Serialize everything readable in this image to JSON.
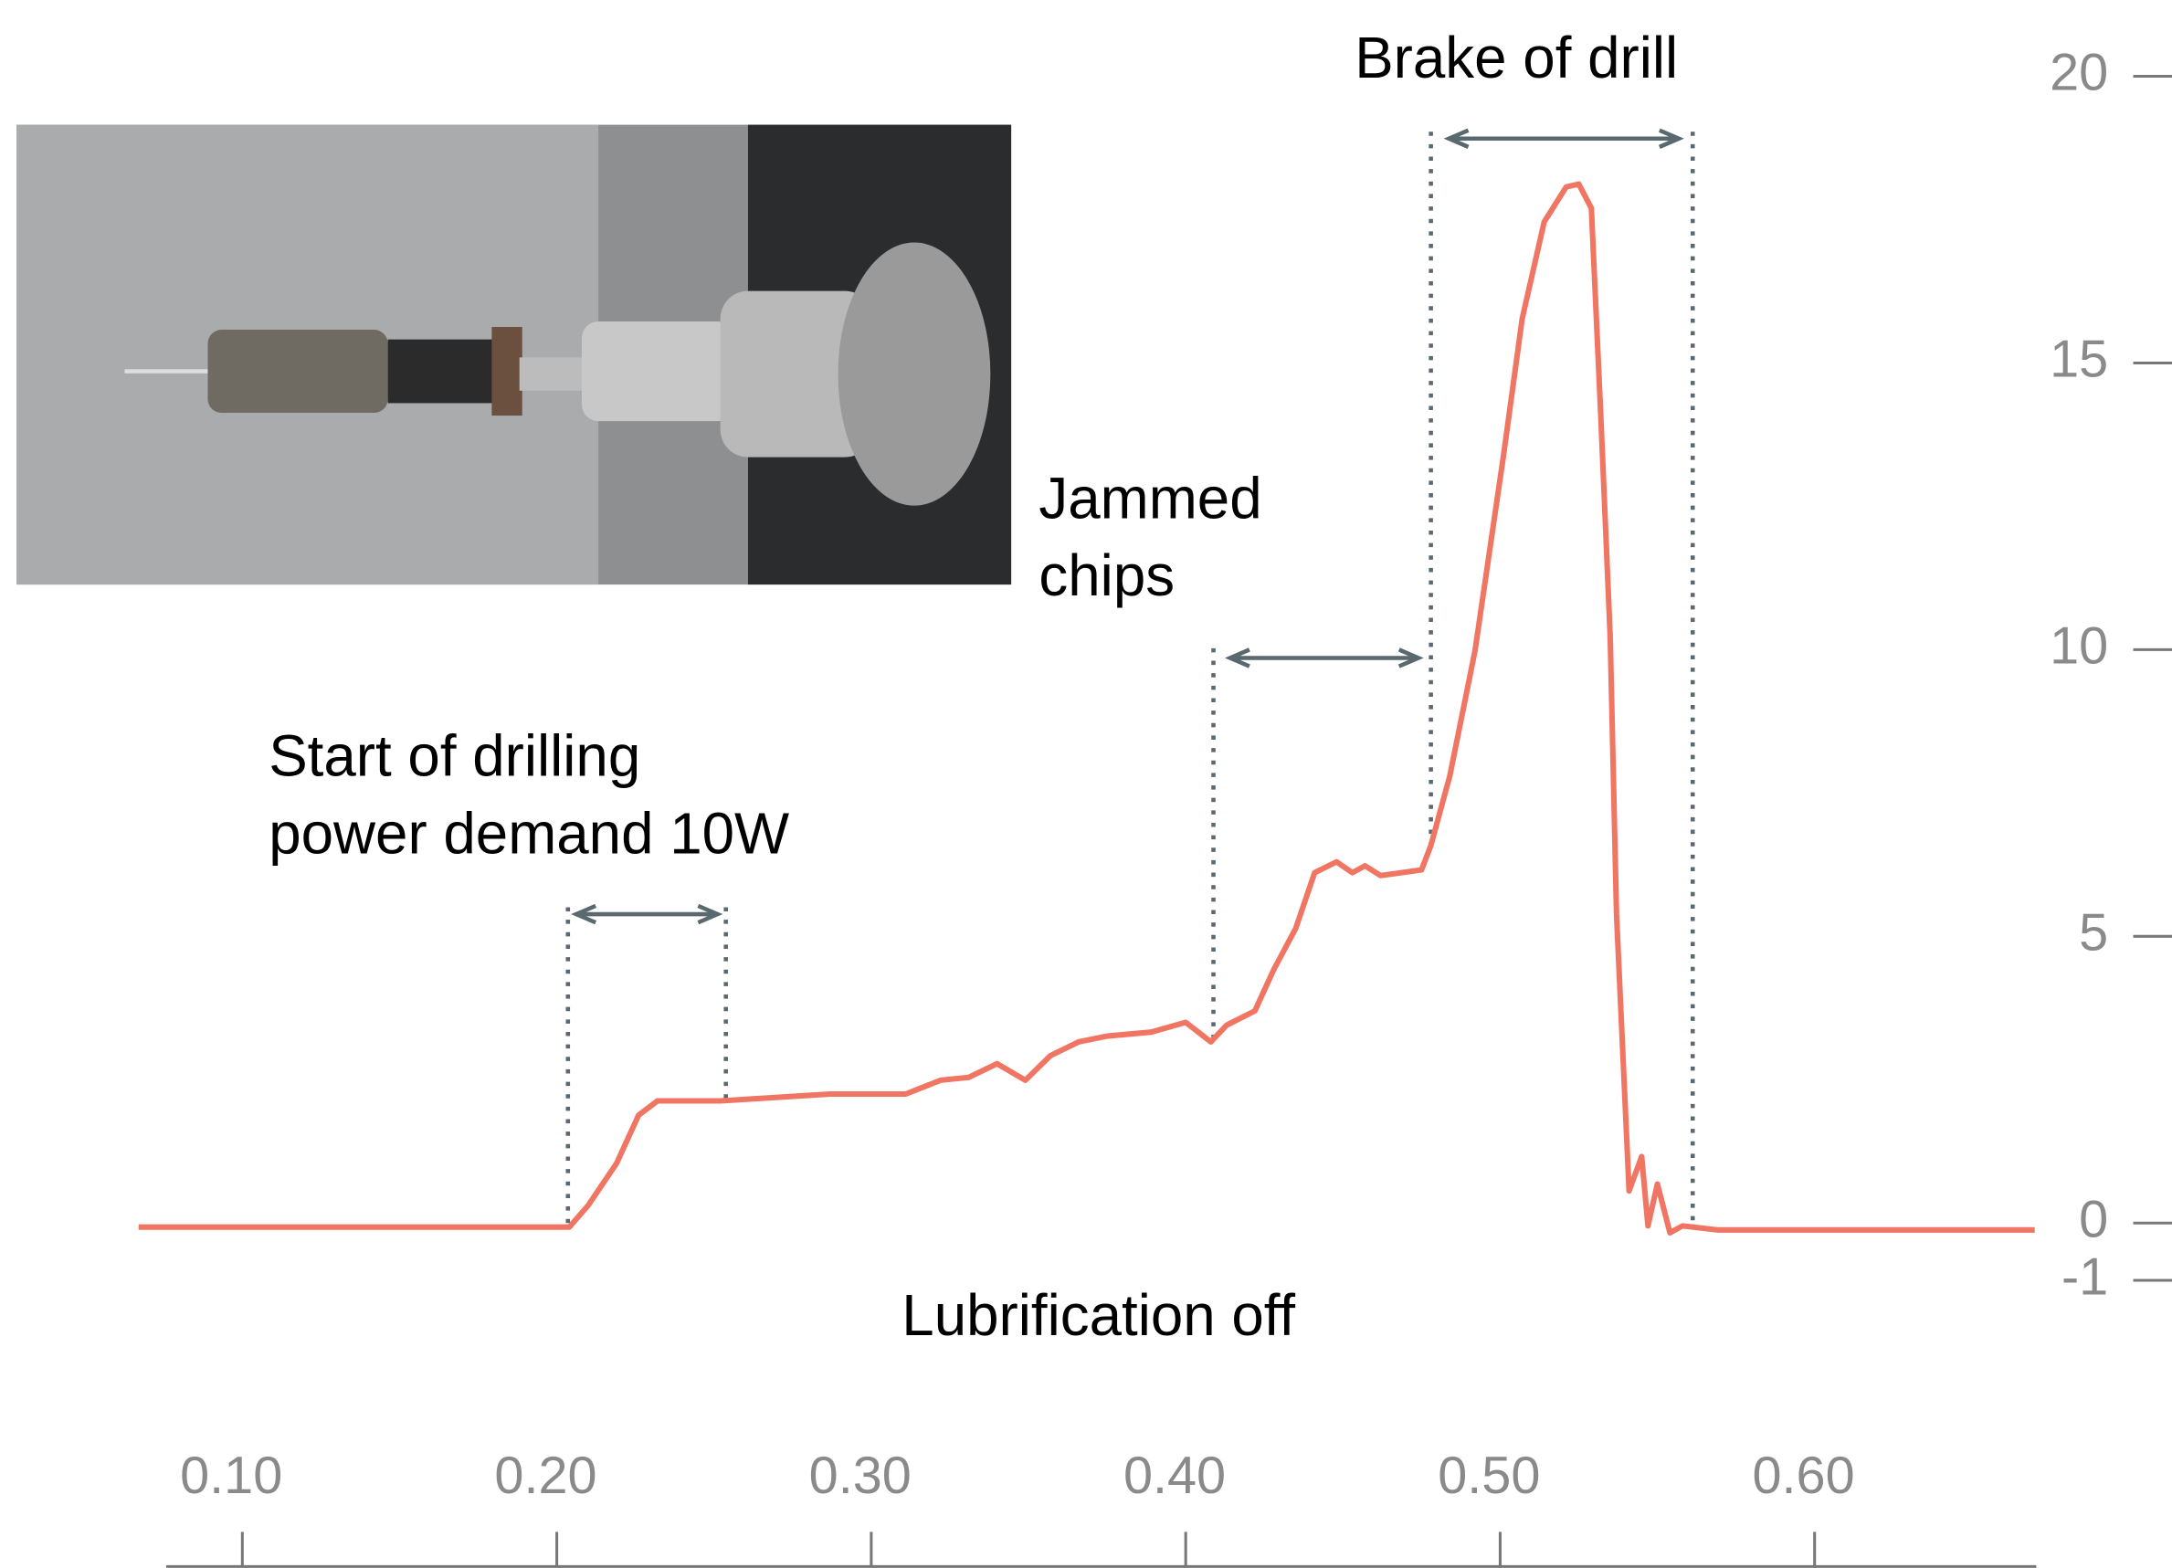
{
  "chart_data": {
    "type": "line",
    "x": [
      0.067,
      0.195,
      0.204,
      0.21,
      0.219,
      0.226,
      0.232,
      0.252,
      0.287,
      0.311,
      0.322,
      0.331,
      0.34,
      0.349,
      0.357,
      0.366,
      0.375,
      0.389,
      0.4,
      0.404,
      0.408,
      0.413,
      0.422,
      0.428,
      0.435,
      0.441,
      0.448,
      0.453,
      0.457,
      0.462,
      0.475,
      0.478,
      0.484,
      0.492,
      0.501,
      0.507,
      0.514,
      0.521,
      0.525,
      0.529,
      0.532,
      0.535,
      0.537,
      0.541,
      0.545,
      0.547,
      0.55,
      0.554,
      0.558,
      0.569,
      0.67
    ],
    "series": [
      {
        "color": "#f07563",
        "values": [
          -0.07,
          -0.07,
          -0.07,
          0.31,
          1.04,
          1.88,
          2.13,
          2.13,
          2.25,
          2.25,
          2.49,
          2.54,
          2.78,
          2.49,
          2.92,
          3.16,
          3.26,
          3.33,
          3.5,
          3.33,
          3.16,
          3.45,
          3.7,
          4.42,
          5.14,
          6.11,
          6.3,
          6.11,
          6.23,
          6.06,
          6.16,
          6.59,
          7.8,
          9.98,
          13.36,
          15.77,
          17.46,
          18.07,
          18.12,
          17.7,
          14.08,
          10.22,
          5.39,
          0.56,
          1.16,
          -0.05,
          0.68,
          -0.17,
          -0.05,
          -0.12,
          -0.12
        ]
      }
    ],
    "xlim": [
      0.065,
      0.67
    ],
    "xticks": [
      {
        "value": 0.1,
        "label": "0.10"
      },
      {
        "value": 0.2,
        "label": "0.20"
      },
      {
        "value": 0.3,
        "label": "0.30"
      },
      {
        "value": 0.4,
        "label": "0.40"
      },
      {
        "value": 0.5,
        "label": "0.50"
      },
      {
        "value": 0.6,
        "label": "0.60"
      }
    ],
    "ylim": [
      -1,
      20
    ],
    "yticks": [
      -1,
      0,
      5,
      10,
      15,
      20
    ],
    "annotations": [
      "Brake of drill",
      "Jammed",
      "chips",
      "Start of drilling",
      "power demand 10W",
      "Lubrification off"
    ]
  }
}
